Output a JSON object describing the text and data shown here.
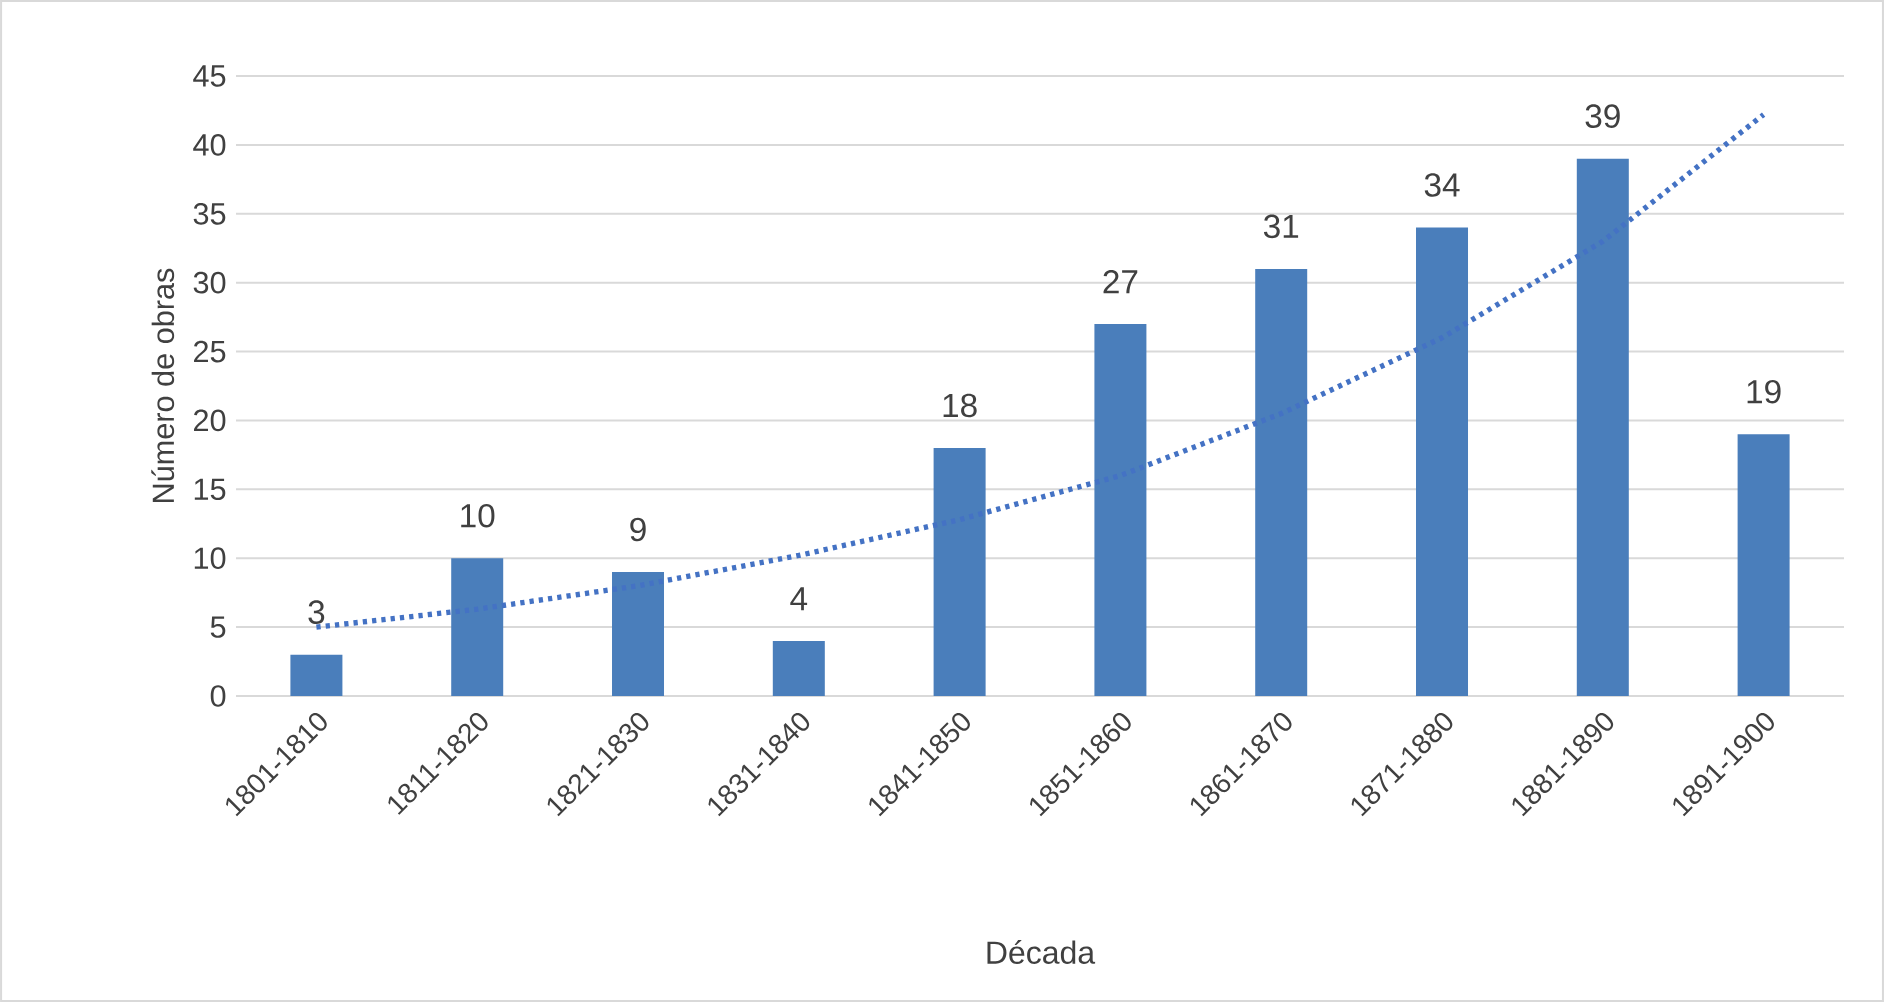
{
  "chart_data": {
    "type": "bar",
    "xlabel": "Década",
    "ylabel": "Número de obras",
    "categories": [
      "1801-1810",
      "1811-1820",
      "1821-1830",
      "1831-1840",
      "1841-1850",
      "1851-1860",
      "1861-1870",
      "1871-1880",
      "1881-1890",
      "1891-1900"
    ],
    "series": [
      {
        "color": "#4a7ebb",
        "values": [
          3,
          10,
          9,
          4,
          18,
          27,
          31,
          34,
          39,
          19
        ],
        "value_labels": [
          "3",
          "10",
          "9",
          "4",
          "18",
          "27",
          "31",
          "34",
          "39",
          "19"
        ]
      },
      {
        "type": "line",
        "color": "#4472c4",
        "line_style": "dotted",
        "values": [
          5,
          6.3,
          8,
          10.2,
          12.8,
          16,
          20.5,
          26,
          33,
          42.2
        ]
      }
    ],
    "ylim": [
      0,
      45
    ],
    "yticks": [
      0,
      5,
      10,
      15,
      20,
      25,
      30,
      35,
      40,
      45
    ],
    "grid": "y"
  }
}
